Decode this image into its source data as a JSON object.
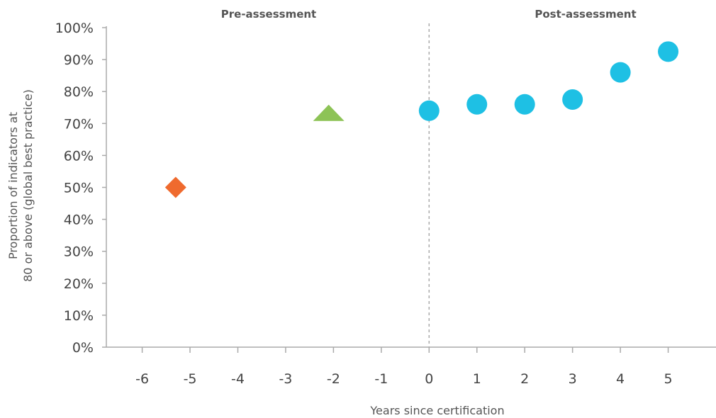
{
  "chart_data": {
    "type": "scatter",
    "xlabel": "Years since certification",
    "ylabel_lines": [
      "Proportion of indicators at",
      "80 or above (global best practice)"
    ],
    "sections": {
      "left": "Pre-assessment",
      "right": "Post-assessment"
    },
    "xlim": [
      -6.75,
      6.0
    ],
    "ylim": [
      0,
      100
    ],
    "x_ticks": [
      -6,
      -5,
      -4,
      -3,
      -2,
      -1,
      0,
      1,
      2,
      3,
      4,
      5
    ],
    "x_tick_labels": [
      "-6",
      "-5",
      "-4",
      "-3",
      "-2",
      "-1",
      "0",
      "1",
      "2",
      "3",
      "4",
      "5"
    ],
    "y_ticks": [
      0,
      10,
      20,
      30,
      40,
      50,
      60,
      70,
      80,
      90,
      100
    ],
    "y_tick_labels": [
      "0%",
      "10%",
      "20%",
      "30%",
      "40%",
      "50%",
      "60%",
      "70%",
      "80%",
      "90%",
      "100%"
    ],
    "divider_x": 0,
    "grid": false,
    "series": [
      {
        "marker": "diamond",
        "color": "#ef6a2e",
        "points": [
          {
            "x": -5.3,
            "y": 50
          }
        ]
      },
      {
        "marker": "triangle",
        "color": "#8dc356",
        "points": [
          {
            "x": -2.1,
            "y": 73
          }
        ]
      },
      {
        "marker": "circle",
        "color": "#1ec0e4",
        "points": [
          {
            "x": 0,
            "y": 74
          },
          {
            "x": 1,
            "y": 76
          },
          {
            "x": 2,
            "y": 76
          },
          {
            "x": 3,
            "y": 77.5
          },
          {
            "x": 4,
            "y": 86
          },
          {
            "x": 5,
            "y": 92.5
          }
        ]
      }
    ]
  }
}
